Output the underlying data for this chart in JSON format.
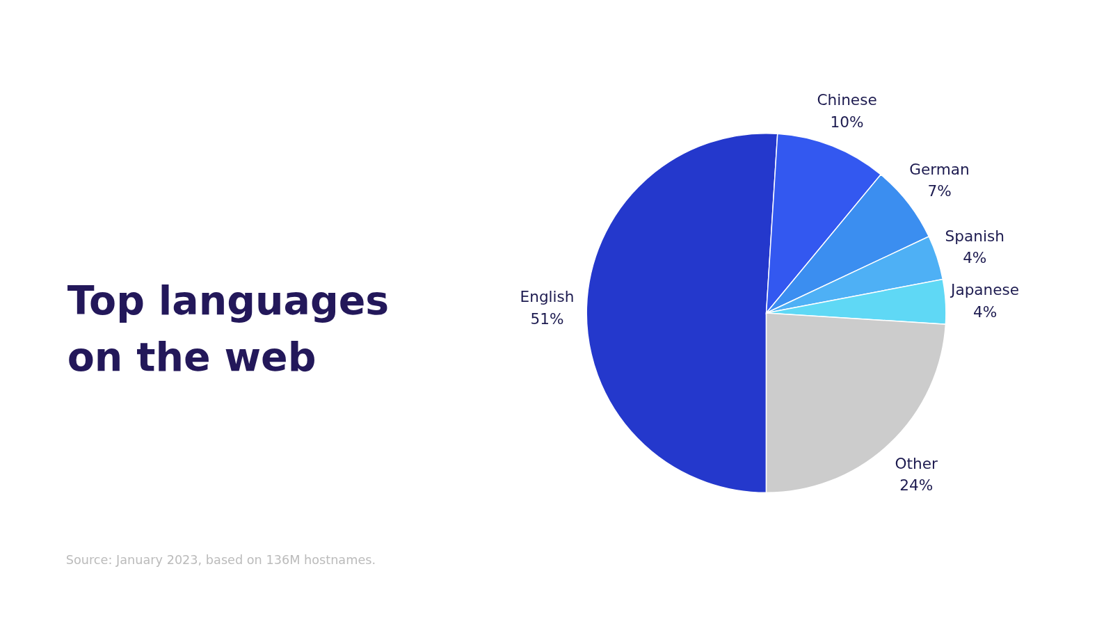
{
  "chart_data": {
    "type": "pie",
    "title": "Top languages on the web",
    "categories": [
      "English",
      "Chinese",
      "German",
      "Spanish",
      "Japanese",
      "Other"
    ],
    "values": [
      51,
      10,
      7,
      4,
      4,
      24
    ],
    "value_labels": [
      "51%",
      "10%",
      "7%",
      "4%",
      "4%",
      "24%"
    ],
    "colors": [
      "#2438cc",
      "#3358f0",
      "#3b8ef0",
      "#4eb0f5",
      "#5fd8f5",
      "#cccccc"
    ],
    "annotations": [
      "Source: January 2023, based on 136M hostnames."
    ]
  }
}
